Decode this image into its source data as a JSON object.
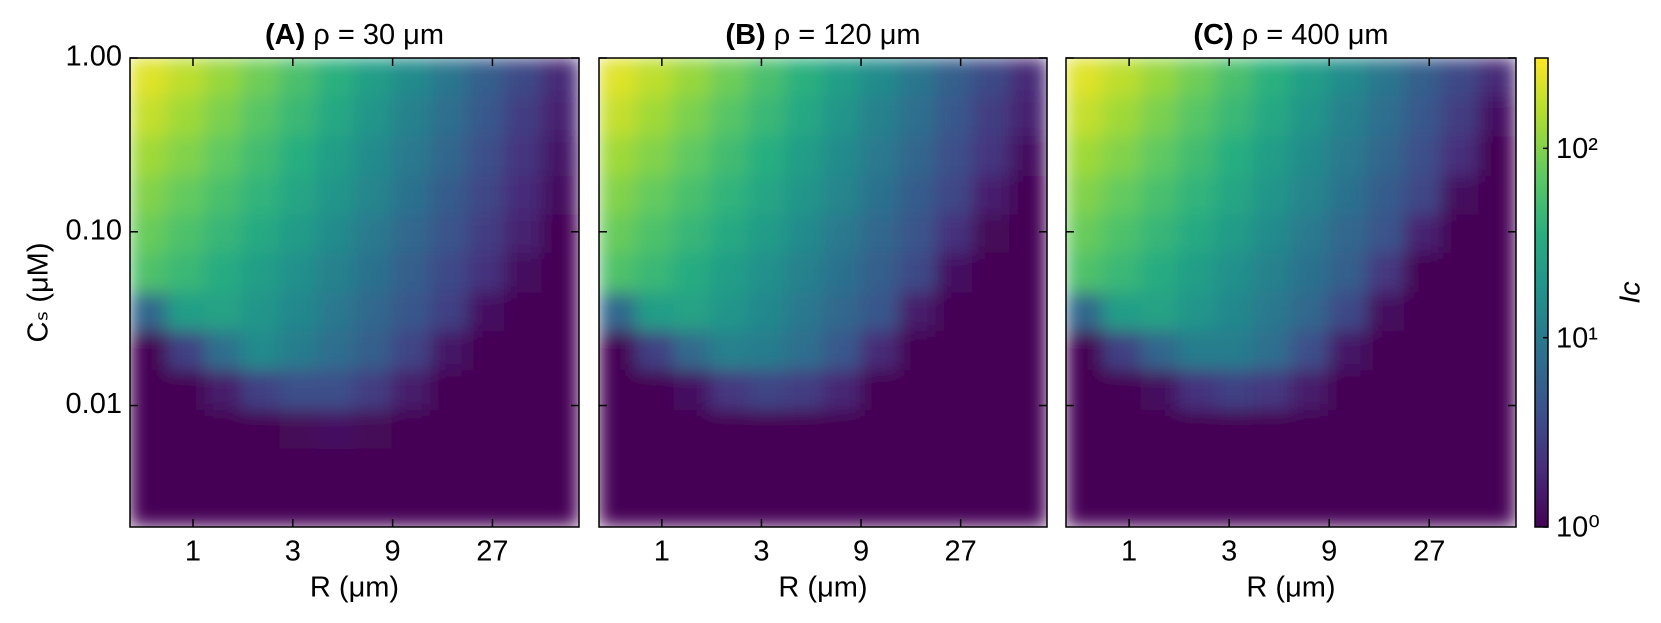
{
  "chart_data": [
    {
      "type": "contour",
      "title": "(A) ρ = 30 μm",
      "xlabel": "R (μm)",
      "ylabel": "Cₛ (μM)",
      "xscale": "log",
      "yscale": "log",
      "xlim": [
        0.5,
        70
      ],
      "ylim": [
        0.002,
        1
      ],
      "xticks": [
        1,
        3,
        9,
        27
      ],
      "yticks": [
        {
          "value": 1,
          "label": "1.00"
        },
        {
          "value": 0.1,
          "label": "0.10"
        },
        {
          "value": 0.01,
          "label": "0.01"
        }
      ],
      "show_ytick_labels": true,
      "colormap": "viridis",
      "x": [
        0.61,
        0.93,
        1.4,
        2.1,
        3.2,
        4.8,
        7.3,
        11,
        17,
        25,
        38,
        57
      ],
      "y": [
        0.77,
        0.46,
        0.27,
        0.16,
        0.097,
        0.058,
        0.034,
        0.021,
        0.012,
        0.0073,
        0.0043,
        0.0026
      ],
      "z": [
        [
          230,
          170,
          120,
          83,
          56,
          37,
          24,
          15,
          9.3,
          5.6,
          3.4,
          1.9
        ],
        [
          180,
          130,
          93,
          65,
          45,
          30,
          19,
          12,
          7.8,
          4.8,
          2.8,
          1.7
        ],
        [
          130,
          100,
          72,
          50,
          35,
          23,
          15,
          10,
          6.5,
          4.0,
          2.4,
          1.4
        ],
        [
          100,
          76,
          55,
          40,
          28,
          19,
          13,
          8.3,
          5.2,
          3.3,
          2.0,
          1.2
        ],
        [
          78,
          58,
          43,
          31,
          22,
          15,
          10,
          6.8,
          4.4,
          2.8,
          1.7,
          1.0
        ],
        [
          59,
          45,
          33,
          24,
          17,
          12,
          8.3,
          5.5,
          3.6,
          2.3,
          1.2,
          1
        ],
        [
          6.6,
          24,
          26,
          19,
          14,
          9.8,
          6.8,
          4.5,
          3.0,
          1.3,
          1,
          1
        ],
        [
          1,
          2.9,
          8.1,
          15,
          11,
          7.8,
          5.4,
          3.2,
          1.4,
          1,
          1,
          1
        ],
        [
          1,
          1,
          1.5,
          3.0,
          4.0,
          3.9,
          2.7,
          1.5,
          1,
          1,
          1,
          1
        ],
        [
          1,
          1,
          1,
          1,
          1.1,
          1.3,
          1.1,
          1,
          1,
          1,
          1,
          1
        ],
        [
          1,
          1,
          1,
          1,
          1,
          1,
          1,
          1,
          1,
          1,
          1,
          1
        ],
        [
          1,
          1,
          1,
          1,
          1,
          1,
          1,
          1,
          1,
          1,
          1,
          1
        ]
      ]
    },
    {
      "type": "contour",
      "title": "(B) ρ = 120 μm",
      "xlabel": "R (μm)",
      "xscale": "log",
      "yscale": "log",
      "xlim": [
        0.5,
        70
      ],
      "ylim": [
        0.002,
        1
      ],
      "xticks": [
        1,
        3,
        9,
        27
      ],
      "yticks": [
        1,
        0.1,
        0.01
      ],
      "show_ytick_labels": false,
      "colormap": "viridis",
      "x": [
        0.61,
        0.93,
        1.4,
        2.1,
        3.2,
        4.8,
        7.3,
        11,
        17,
        25,
        38,
        57
      ],
      "y": [
        0.77,
        0.46,
        0.27,
        0.16,
        0.097,
        0.058,
        0.034,
        0.021,
        0.012,
        0.0073,
        0.0043,
        0.0026
      ],
      "z": [
        [
          230,
          170,
          120,
          83,
          56,
          37,
          24,
          15,
          9.3,
          5.6,
          3.4,
          1.9
        ],
        [
          180,
          130,
          93,
          65,
          45,
          30,
          19,
          12,
          7.8,
          4.8,
          2.8,
          1.7
        ],
        [
          130,
          100,
          72,
          50,
          35,
          23,
          15,
          10,
          6.5,
          4.0,
          2.4,
          1.2
        ],
        [
          100,
          76,
          55,
          40,
          28,
          19,
          13,
          8.3,
          5.2,
          3.3,
          1.6,
          1
        ],
        [
          78,
          58,
          43,
          31,
          22,
          15,
          10,
          6.8,
          4.4,
          2.3,
          1.1,
          1
        ],
        [
          59,
          45,
          33,
          24,
          17,
          12,
          8.3,
          5.5,
          3.4,
          1.3,
          1,
          1
        ],
        [
          6.6,
          24,
          26,
          19,
          14,
          9.8,
          6.8,
          4.5,
          1.5,
          1,
          1,
          1
        ],
        [
          1,
          2.9,
          7.1,
          12,
          11,
          7.8,
          4.9,
          1.9,
          1,
          1,
          1,
          1
        ],
        [
          1,
          1,
          1.3,
          2.5,
          3.2,
          2.8,
          1.8,
          1,
          1,
          1,
          1,
          1
        ],
        [
          1,
          1,
          1,
          1,
          1,
          1,
          1,
          1,
          1,
          1,
          1,
          1
        ],
        [
          1,
          1,
          1,
          1,
          1,
          1,
          1,
          1,
          1,
          1,
          1,
          1
        ],
        [
          1,
          1,
          1,
          1,
          1,
          1,
          1,
          1,
          1,
          1,
          1,
          1
        ]
      ]
    },
    {
      "type": "contour",
      "title": "(C) ρ = 400 μm",
      "xlabel": "R (μm)",
      "xscale": "log",
      "yscale": "log",
      "xlim": [
        0.5,
        70
      ],
      "ylim": [
        0.002,
        1
      ],
      "xticks": [
        1,
        3,
        9,
        27
      ],
      "yticks": [
        1,
        0.1,
        0.01
      ],
      "show_ytick_labels": false,
      "colormap": "viridis",
      "x": [
        0.61,
        0.93,
        1.4,
        2.1,
        3.2,
        4.8,
        7.3,
        11,
        17,
        25,
        38,
        57
      ],
      "y": [
        0.77,
        0.46,
        0.27,
        0.16,
        0.097,
        0.058,
        0.034,
        0.021,
        0.012,
        0.0073,
        0.0043,
        0.0026
      ],
      "z": [
        [
          230,
          170,
          120,
          83,
          56,
          37,
          24,
          15,
          9.3,
          5.6,
          3.4,
          1.9
        ],
        [
          180,
          130,
          93,
          65,
          45,
          30,
          19,
          12,
          7.8,
          4.8,
          2.8,
          1.3
        ],
        [
          130,
          100,
          72,
          50,
          35,
          23,
          15,
          10,
          6.5,
          4.0,
          2.1,
          1
        ],
        [
          100,
          76,
          55,
          40,
          28,
          19,
          13,
          8.3,
          5.2,
          3.3,
          1.2,
          1
        ],
        [
          78,
          58,
          43,
          31,
          22,
          15,
          10,
          6.8,
          4.4,
          1.7,
          1,
          1
        ],
        [
          59,
          45,
          33,
          24,
          17,
          12,
          8.3,
          5.5,
          2.5,
          1,
          1,
          1
        ],
        [
          6.6,
          24,
          26,
          19,
          14,
          9.8,
          6.8,
          3.5,
          1.2,
          1,
          1,
          1
        ],
        [
          1,
          2.9,
          6.5,
          11,
          11,
          7.8,
          4.0,
          1.4,
          1,
          1,
          1,
          1
        ],
        [
          1,
          1,
          1.2,
          2.3,
          3.0,
          2.5,
          1.5,
          1,
          1,
          1,
          1,
          1
        ],
        [
          1,
          1,
          1,
          1,
          1,
          1,
          1,
          1,
          1,
          1,
          1,
          1
        ],
        [
          1,
          1,
          1,
          1,
          1,
          1,
          1,
          1,
          1,
          1,
          1,
          1
        ],
        [
          1,
          1,
          1,
          1,
          1,
          1,
          1,
          1,
          1,
          1,
          1,
          1
        ]
      ]
    },
    {
      "type": "colorbar",
      "label": "Ic",
      "scale": "log",
      "colormap": "viridis",
      "lim": [
        1,
        300
      ],
      "ticks": [
        {
          "value": 1,
          "label": "10⁰"
        },
        {
          "value": 10,
          "label": "10¹"
        },
        {
          "value": 100,
          "label": "10²"
        }
      ]
    }
  ]
}
